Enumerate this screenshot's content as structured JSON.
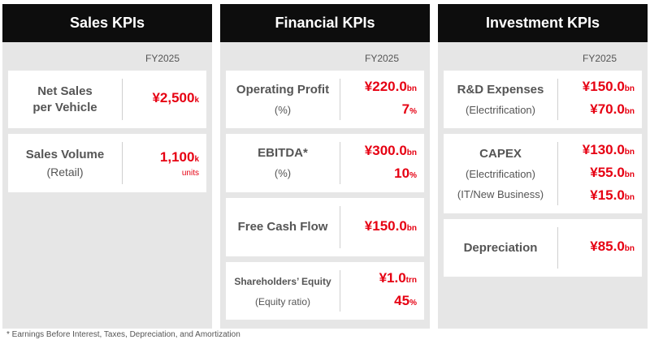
{
  "sales": {
    "title": "Sales KPIs",
    "fy": "FY2025",
    "cards": [
      {
        "label1": "Net Sales",
        "label2": "per Vehicle",
        "v1": "¥2,500",
        "u1": "k"
      },
      {
        "label1": "Sales Volume",
        "sub1": "(Retail)",
        "v1": "1,100",
        "u1": "k",
        "note": "units"
      }
    ]
  },
  "financial": {
    "title": "Financial KPIs",
    "fy": "FY2025",
    "cards": [
      {
        "label": "Operating Profit",
        "sub": "(%)",
        "v1": "¥220.0",
        "u1": "bn",
        "v2": "7",
        "u2": "%"
      },
      {
        "label": "EBITDA*",
        "sub": "(%)",
        "v1": "¥300.0",
        "u1": "bn",
        "v2": "10",
        "u2": "%"
      },
      {
        "label": "Free Cash Flow",
        "v1": "¥150.0",
        "u1": "bn"
      },
      {
        "label": "Shareholders’ Equity",
        "sub": "(Equity ratio)",
        "v1": "¥1.0",
        "u1": "trn",
        "v2": "45",
        "u2": "%"
      }
    ]
  },
  "investment": {
    "title": "Investment KPIs",
    "fy": "FY2025",
    "cards": [
      {
        "label": "R&D Expenses",
        "sub": "(Electrification)",
        "v1": "¥150.0",
        "u1": "bn",
        "v2": "¥70.0",
        "u2": "bn"
      },
      {
        "label": "CAPEX",
        "sub1": "(Electrification)",
        "sub2": "(IT/New Business)",
        "v1": "¥130.0",
        "u1": "bn",
        "v2": "¥55.0",
        "u2": "bn",
        "v3": "¥15.0",
        "u3": "bn"
      },
      {
        "label": "Depreciation",
        "v1": "¥85.0",
        "u1": "bn"
      }
    ]
  },
  "footnote": "* Earnings Before Interest, Taxes, Depreciation, and Amortization"
}
